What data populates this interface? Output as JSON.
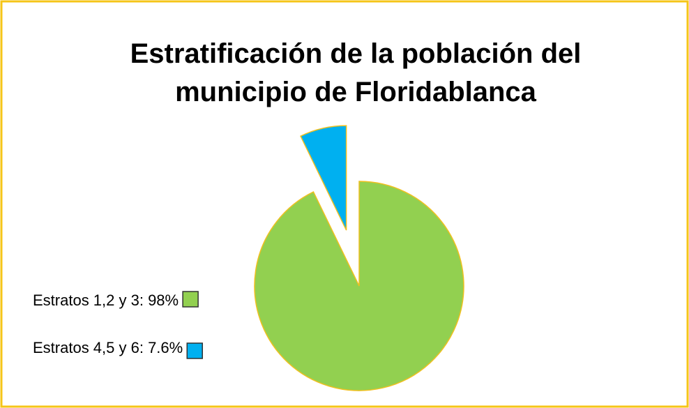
{
  "chart_data": {
    "type": "pie",
    "title": [
      "Estratificación de la población del",
      "municipio de Floridablanca"
    ],
    "categories": [
      "Estratos 1,2 y 3: 98%",
      "Estratos 4,5 y 6: 7.6%"
    ],
    "values": [
      98,
      7.6
    ],
    "colors": [
      "#92d050",
      "#00b0f0"
    ],
    "exploded": [
      false,
      true
    ],
    "legend": "left"
  }
}
